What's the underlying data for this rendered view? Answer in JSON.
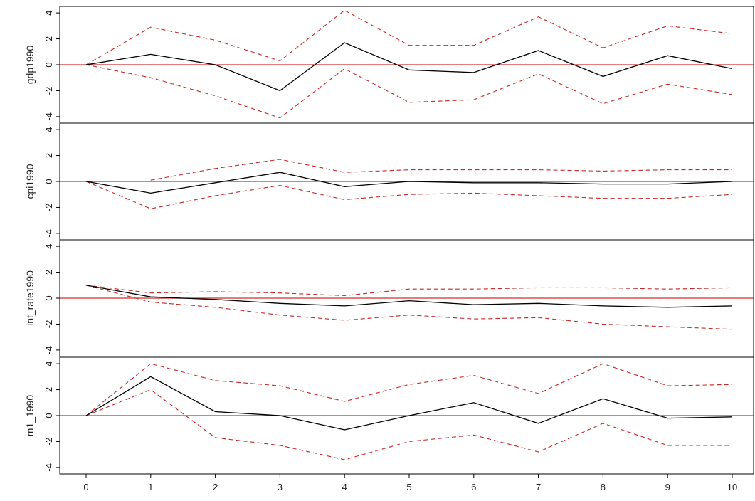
{
  "chart_data": {
    "type": "line",
    "x": [
      0,
      1,
      2,
      3,
      4,
      5,
      6,
      7,
      8,
      9,
      10
    ],
    "x_ticks": [
      "0",
      "1",
      "2",
      "3",
      "4",
      "5",
      "6",
      "7",
      "8",
      "9",
      "10"
    ],
    "ylim": [
      -4.5,
      4.5
    ],
    "y_ticks": [
      "-4",
      "-2",
      "0",
      "2",
      "4"
    ],
    "grid": false,
    "colors": {
      "response": "#000000",
      "bands": "#c62828",
      "zero_line": "#d32f2f",
      "frame": "#000000"
    },
    "panels": [
      {
        "ylabel": "gdp1990",
        "response": [
          0,
          0.8,
          0.0,
          -2.0,
          1.7,
          -0.4,
          -0.6,
          1.1,
          -0.9,
          0.7,
          -0.3
        ],
        "upper": [
          0,
          2.9,
          1.9,
          0.3,
          4.2,
          1.5,
          1.5,
          3.7,
          1.3,
          3.0,
          2.4
        ],
        "lower": [
          0,
          -1.0,
          -2.4,
          -4.1,
          -0.3,
          -2.9,
          -2.7,
          -0.7,
          -3.0,
          -1.5,
          -2.3
        ]
      },
      {
        "ylabel": "cpi1990",
        "response": [
          0,
          -0.9,
          -0.1,
          0.7,
          -0.4,
          0.0,
          -0.1,
          -0.1,
          -0.2,
          -0.2,
          0.0
        ],
        "upper": [
          null,
          0.1,
          1.0,
          1.7,
          0.7,
          0.9,
          0.9,
          0.9,
          0.8,
          0.9,
          0.9
        ],
        "lower": [
          0,
          -2.1,
          -1.1,
          -0.3,
          -1.4,
          -1.0,
          -0.9,
          -1.1,
          -1.3,
          -1.3,
          -1.0
        ]
      },
      {
        "ylabel": "int_rate1990",
        "response": [
          1.0,
          0.1,
          -0.1,
          -0.4,
          -0.6,
          -0.2,
          -0.5,
          -0.4,
          -0.6,
          -0.7,
          -0.6
        ],
        "upper": [
          1.0,
          0.4,
          0.5,
          0.4,
          0.2,
          0.7,
          0.7,
          0.8,
          0.8,
          0.7,
          0.8
        ],
        "lower": [
          1.0,
          -0.3,
          -0.7,
          -1.3,
          -1.7,
          -1.3,
          -1.6,
          -1.5,
          -2.0,
          -2.2,
          -2.4
        ]
      },
      {
        "ylabel": "m1_1990",
        "response": [
          0,
          3.0,
          0.3,
          0.0,
          -1.1,
          0.0,
          1.0,
          -0.6,
          1.3,
          -0.2,
          -0.1
        ],
        "upper": [
          0,
          4.0,
          2.7,
          2.3,
          1.1,
          2.4,
          3.1,
          1.7,
          4.0,
          2.3,
          2.4
        ],
        "lower": [
          0,
          2.0,
          -1.7,
          -2.3,
          -3.4,
          -2.0,
          -1.5,
          -2.8,
          -0.6,
          -2.3,
          -2.3
        ]
      }
    ]
  }
}
